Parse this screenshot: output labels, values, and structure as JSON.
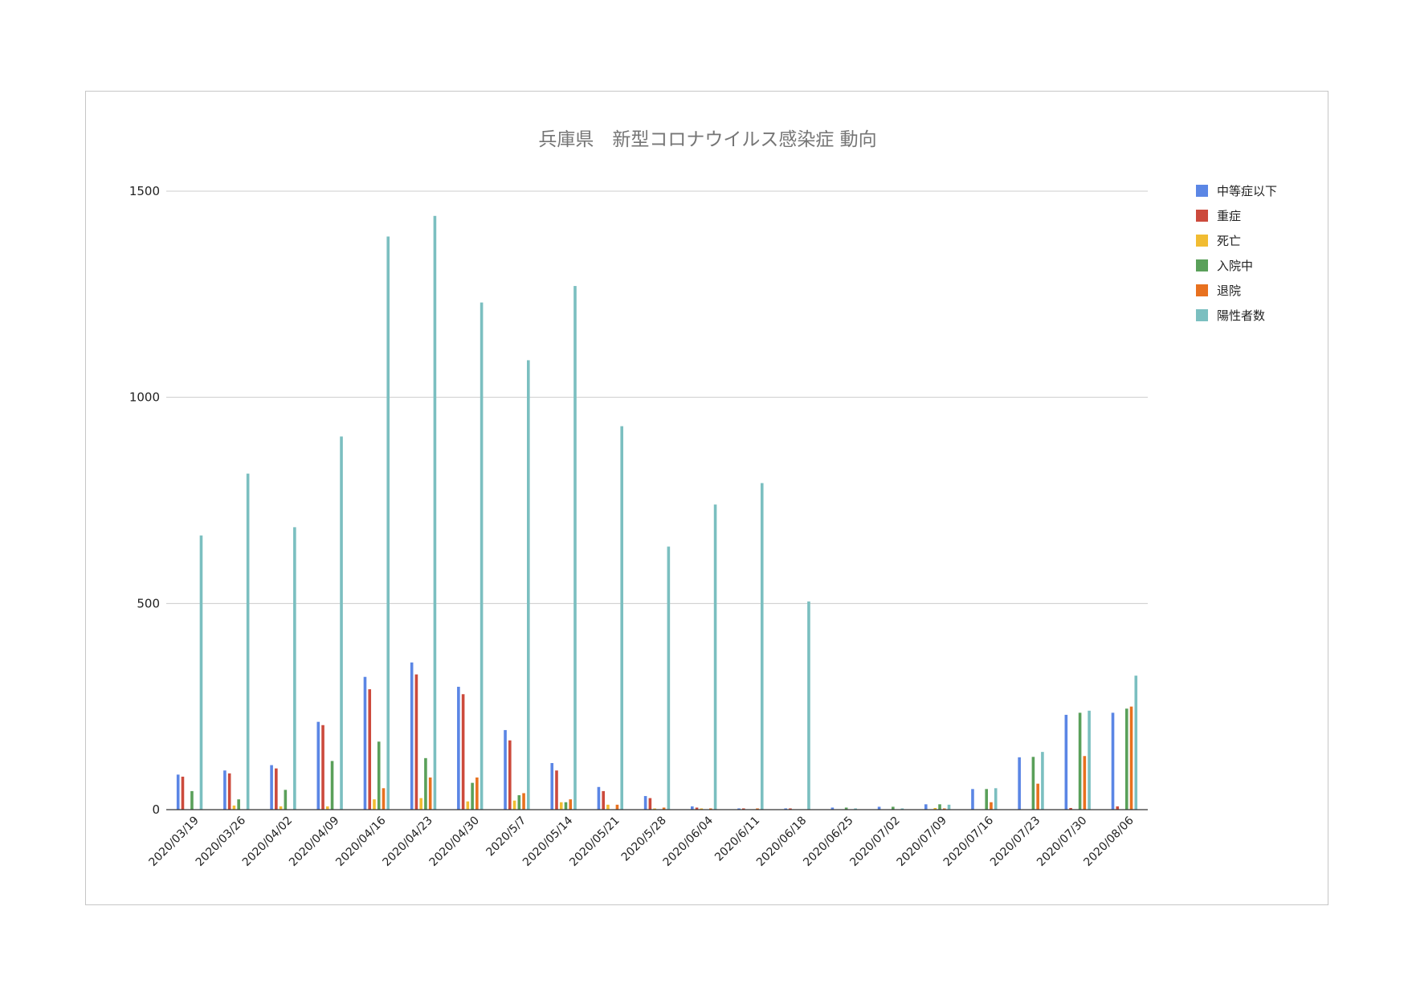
{
  "chart_data": {
    "type": "bar",
    "title": "兵庫県　新型コロナウイルス感染症 動向",
    "xlabel": "",
    "ylabel": "",
    "ylim": [
      0,
      1500
    ],
    "yticks": [
      0,
      500,
      1000,
      1500
    ],
    "grid": true,
    "legend_position": "right",
    "categories": [
      "2020/03/19",
      "2020/03/26",
      "2020/04/02",
      "2020/04/09",
      "2020/04/16",
      "2020/04/23",
      "2020/04/30",
      "2020/5/7",
      "2020/05/14",
      "2020/05/21",
      "2020/5/28",
      "2020/06/04",
      "2020/6/11",
      "2020/06/18",
      "2020/06/25",
      "2020/07/02",
      "2020/07/09",
      "2020/07/16",
      "2020/07/23",
      "2020/07/30",
      "2020/08/06"
    ],
    "series": [
      {
        "name": "中等症以下",
        "color": "#5b86e5",
        "values": [
          85,
          95,
          108,
          213,
          322,
          357,
          298,
          193,
          113,
          55,
          33,
          8,
          3,
          3,
          5,
          7,
          13,
          50,
          127,
          230,
          235
        ]
      },
      {
        "name": "重症",
        "color": "#cc4a3c",
        "values": [
          80,
          88,
          100,
          205,
          292,
          328,
          280,
          168,
          95,
          45,
          28,
          5,
          3,
          3,
          0,
          0,
          0,
          0,
          0,
          4,
          8
        ]
      },
      {
        "name": "死亡",
        "color": "#f1bc32",
        "values": [
          0,
          10,
          8,
          8,
          25,
          28,
          20,
          22,
          18,
          12,
          3,
          3,
          0,
          0,
          0,
          0,
          4,
          0,
          0,
          0,
          0
        ]
      },
      {
        "name": "入院中",
        "color": "#5aa05a",
        "values": [
          45,
          25,
          48,
          118,
          165,
          125,
          65,
          35,
          18,
          0,
          0,
          0,
          0,
          0,
          5,
          7,
          13,
          50,
          128,
          235,
          245
        ]
      },
      {
        "name": "退院",
        "color": "#e8711f",
        "values": [
          0,
          0,
          0,
          0,
          52,
          78,
          78,
          40,
          25,
          12,
          5,
          3,
          3,
          0,
          0,
          0,
          3,
          18,
          63,
          130,
          250
        ]
      },
      {
        "name": "陽性者数",
        "color": "#7bbfc0",
        "values": [
          665,
          815,
          685,
          905,
          1390,
          1440,
          1230,
          1090,
          1270,
          930,
          638,
          740,
          792,
          505,
          3,
          3,
          12,
          52,
          140,
          240,
          325
        ]
      }
    ]
  }
}
